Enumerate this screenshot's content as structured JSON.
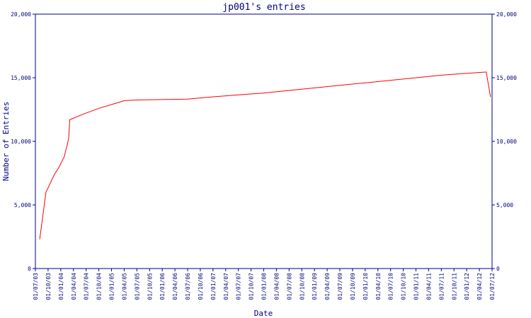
{
  "chart_data": {
    "type": "line",
    "title": "jp001's entries",
    "xlabel": "Date",
    "ylabel": "Number of Entries",
    "ylim": [
      0,
      20000
    ],
    "y_ticks": [
      0,
      5000,
      10000,
      15000,
      20000
    ],
    "y_tick_labels": [
      "0",
      "5,000",
      "10,000",
      "15,000",
      "20,000"
    ],
    "x_range": [
      "2003-07-01",
      "2012-07-01"
    ],
    "x_tick_labels": [
      "01/07/03",
      "01/10/03",
      "01/01/04",
      "01/04/04",
      "01/07/04",
      "01/10/04",
      "01/01/05",
      "01/04/05",
      "01/07/05",
      "01/10/05",
      "01/01/06",
      "01/04/06",
      "01/07/06",
      "01/10/06",
      "01/01/07",
      "01/04/07",
      "01/07/07",
      "01/10/07",
      "01/01/08",
      "01/04/08",
      "01/07/08",
      "01/10/08",
      "01/01/09",
      "01/04/09",
      "01/07/09",
      "01/10/09",
      "01/01/10",
      "01/04/10",
      "01/07/10",
      "01/10/10",
      "01/01/11",
      "01/04/11",
      "01/07/11",
      "01/10/11",
      "01/01/12",
      "01/04/12",
      "01/07/12"
    ],
    "grid": false,
    "colors": {
      "axis": "#000080",
      "line": "#ff0000"
    },
    "series": [
      {
        "points": [
          [
            "2003-08-01",
            2300
          ],
          [
            "2003-09-15",
            6000
          ],
          [
            "2003-11-15",
            7400
          ],
          [
            "2003-12-20",
            8000
          ],
          [
            "2004-01-25",
            8800
          ],
          [
            "2004-02-25",
            10200
          ],
          [
            "2004-03-05",
            11700
          ],
          [
            "2004-06-01",
            12100
          ],
          [
            "2004-10-01",
            12600
          ],
          [
            "2005-02-01",
            13000
          ],
          [
            "2005-04-01",
            13200
          ],
          [
            "2005-07-01",
            13250
          ],
          [
            "2006-07-01",
            13320
          ],
          [
            "2007-01-01",
            13500
          ],
          [
            "2007-07-01",
            13650
          ],
          [
            "2008-01-01",
            13800
          ],
          [
            "2008-07-01",
            14000
          ],
          [
            "2009-01-01",
            14200
          ],
          [
            "2009-07-01",
            14400
          ],
          [
            "2010-01-01",
            14600
          ],
          [
            "2010-07-01",
            14800
          ],
          [
            "2011-01-01",
            15000
          ],
          [
            "2011-07-01",
            15200
          ],
          [
            "2012-01-01",
            15350
          ],
          [
            "2012-05-20",
            15450
          ],
          [
            "2012-06-20",
            13500
          ]
        ]
      }
    ]
  }
}
